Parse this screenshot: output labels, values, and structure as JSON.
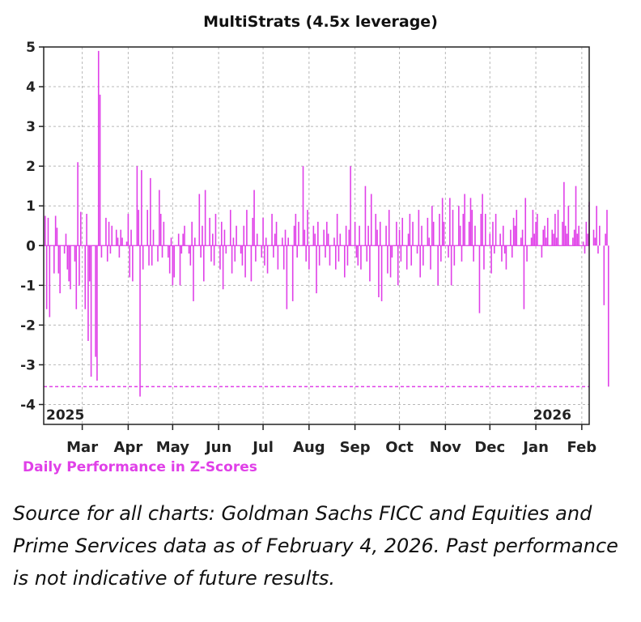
{
  "chart_data": {
    "type": "bar",
    "title": "MultiStrats (4.5x leverage)",
    "legend": "Daily Performance in Z-Scores",
    "xlabel": "",
    "ylabel": "",
    "ylim": [
      -4.5,
      5
    ],
    "yticks": [
      -4,
      -3,
      -2,
      -1,
      0,
      1,
      2,
      3,
      4,
      5
    ],
    "year_labels": [
      "2025",
      "2026"
    ],
    "month_labels": [
      "Mar",
      "Apr",
      "May",
      "Jun",
      "Jul",
      "Aug",
      "Sep",
      "Oct",
      "Nov",
      "Dec",
      "Jan",
      "Feb"
    ],
    "x_range": [
      "2025-02-03",
      "2026-02-06"
    ],
    "month_ticks": [
      "2025-03-01",
      "2025-04-01",
      "2025-05-01",
      "2025-06-01",
      "2025-07-01",
      "2025-08-01",
      "2025-09-01",
      "2025-10-01",
      "2025-11-01",
      "2025-12-01",
      "2026-01-01",
      "2026-02-01"
    ],
    "grid": true,
    "reference_line": -3.55,
    "color": "#e040e8",
    "start_date": "2025-02-04",
    "values": [
      0.75,
      -1.6,
      0.7,
      -1.8,
      -0.7,
      0.75,
      0.45,
      -0.7,
      -1.2,
      -0.2,
      0.3,
      -0.6,
      -0.9,
      -1.1,
      -0.4,
      -1.6,
      2.1,
      -1.0,
      0.85,
      -1.6,
      0.8,
      -2.4,
      -0.9,
      -3.3,
      -2.8,
      -3.4,
      4.9,
      3.8,
      -0.3,
      0.7,
      -0.4,
      0.6,
      -0.2,
      0.5,
      0.4,
      0.2,
      -0.3,
      0.4,
      0.2,
      0.1,
      0.8,
      -0.8,
      0.4,
      -0.9,
      2.0,
      0.9,
      -3.8,
      1.9,
      -0.6,
      0.9,
      -0.5,
      1.7,
      -0.5,
      0.4,
      -0.4,
      1.4,
      0.8,
      -0.3,
      0.6,
      -0.3,
      -0.7,
      0.2,
      -1.0,
      -0.8,
      0.3,
      -1.0,
      -0.2,
      0.3,
      0.5,
      -0.2,
      -0.5,
      0.6,
      -1.4,
      0.2,
      1.3,
      -0.3,
      0.5,
      -0.9,
      1.4,
      0.7,
      -0.4,
      0.3,
      -0.5,
      0.8,
      -0.6,
      0.6,
      -1.1,
      0.4,
      -0.2,
      0.9,
      -0.7,
      0.2,
      -0.4,
      0.5,
      -0.2,
      -0.5,
      0.5,
      -0.8,
      0.9,
      -0.9,
      0.7,
      1.4,
      -0.4,
      0.3,
      -0.3,
      0.7,
      -0.5,
      0.2,
      -0.7,
      0.8,
      -0.3,
      0.3,
      0.6,
      -0.6,
      0.2,
      -0.6,
      0.4,
      -1.6,
      0.2,
      -1.4,
      0.5,
      0.8,
      -0.3,
      0.6,
      2.0,
      0.4,
      -0.4,
      0.9,
      -0.6,
      0.5,
      0.3,
      -1.2,
      0.6,
      -0.5,
      0.4,
      -0.3,
      0.6,
      0.3,
      -0.5,
      0.2,
      -0.6,
      0.8,
      -0.4,
      0.3,
      -0.8,
      0.5,
      -0.5,
      0.4,
      2.0,
      0.6,
      -0.3,
      -0.5,
      0.5,
      -0.6,
      1.5,
      -0.4,
      0.5,
      -0.9,
      1.3,
      0.8,
      0.4,
      -1.3,
      0.6,
      -1.4,
      0.5,
      -0.7,
      0.9,
      -0.8,
      -0.3,
      0.6,
      -1.0,
      0.4,
      -0.4,
      0.7,
      -0.6,
      0.3,
      0.8,
      -0.5,
      0.6,
      -0.2,
      0.9,
      -0.8,
      0.5,
      -0.5,
      0.7,
      0.2,
      -0.6,
      1.0,
      0.6,
      -1.0,
      0.8,
      -0.4,
      1.2,
      0.6,
      -0.3,
      1.2,
      -1.0,
      0.9,
      -0.5,
      1.0,
      0.5,
      -0.4,
      0.8,
      1.3,
      0.6,
      1.2,
      0.9,
      -0.4,
      0.5,
      -1.7,
      0.8,
      1.3,
      -0.6,
      0.8,
      0.3,
      -0.7,
      0.6,
      -0.2,
      0.8,
      0.3,
      -0.4,
      0.5,
      -0.2,
      -0.6,
      0.4,
      -0.3,
      0.7,
      0.5,
      0.9,
      0.2,
      0.4,
      -1.6,
      1.2,
      -0.4,
      0.2,
      0.9,
      0.3,
      0.6,
      0.8,
      -0.3,
      0.4,
      0.5,
      0.2,
      0.7,
      0.4,
      0.3,
      0.8,
      0.2,
      0.9,
      0.6,
      1.6,
      0.5,
      0.3,
      1.0,
      0.2,
      0.4,
      1.5,
      0.3,
      0.5,
      0.1,
      -0.2,
      0.6,
      0.3,
      1.1,
      0.4,
      0.2,
      1.0,
      -0.2,
      0.5,
      -1.5,
      0.3,
      0.9,
      -3.55
    ]
  },
  "source_note": "Source for all charts: Goldman Sachs FICC and Equities and Prime Services data as of February 4, 2026. Past performance is not indicative of future results."
}
